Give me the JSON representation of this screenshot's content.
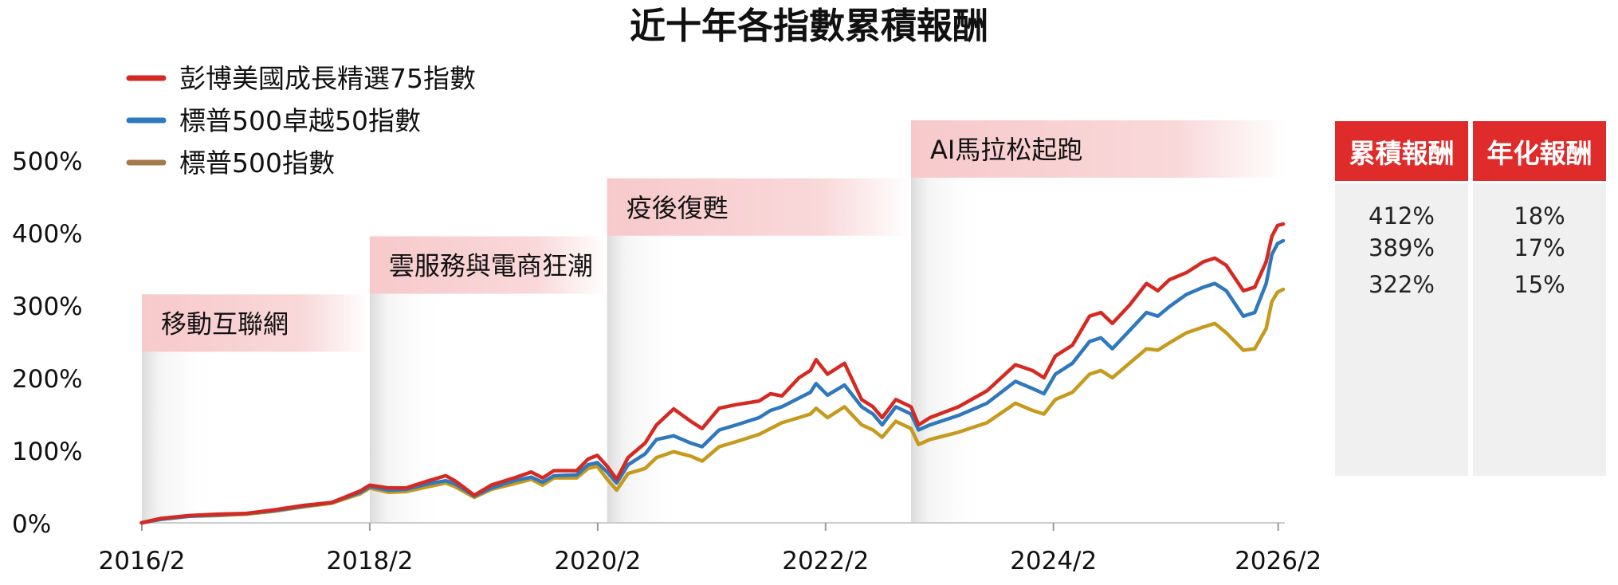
{
  "chart_data": {
    "type": "line",
    "title": "近十年各指數累積報酬",
    "x_ticks": [
      "2016/2",
      "2018/2",
      "2020/2",
      "2022/2",
      "2024/2",
      "2026/2"
    ],
    "y_ticks": [
      "0%",
      "100%",
      "200%",
      "300%",
      "400%",
      "500%"
    ],
    "ylim": [
      0,
      500
    ],
    "xlim": [
      2016.08,
      2026.17
    ],
    "grid": false,
    "legend_position": "top-left",
    "phases": [
      {
        "label": "移動互聯網",
        "start": 2016.0833,
        "end": 2018.0833,
        "band_top": 315
      },
      {
        "label": "雲服務與電商狂潮",
        "start": 2018.0833,
        "end": 2020.1667,
        "band_top": 395
      },
      {
        "label": "疫後復甦",
        "start": 2020.1667,
        "end": 2022.8333,
        "band_top": 475
      },
      {
        "label": "AI馬拉松起跑",
        "start": 2022.8333,
        "end": 2026.1,
        "band_top": 555
      }
    ],
    "series": [
      {
        "name": "彭博美國成長精選75指數",
        "color": "#d42a22",
        "points": [
          [
            2016.08,
            0
          ],
          [
            2016.25,
            6
          ],
          [
            2016.5,
            10
          ],
          [
            2016.75,
            12
          ],
          [
            2017.0,
            13
          ],
          [
            2017.25,
            18
          ],
          [
            2017.5,
            24
          ],
          [
            2017.75,
            28
          ],
          [
            2018.0,
            44
          ],
          [
            2018.0833,
            52
          ],
          [
            2018.25,
            48
          ],
          [
            2018.4,
            48
          ],
          [
            2018.6,
            58
          ],
          [
            2018.75,
            65
          ],
          [
            2018.83,
            58
          ],
          [
            2018.9,
            50
          ],
          [
            2019.0,
            38
          ],
          [
            2019.15,
            52
          ],
          [
            2019.35,
            62
          ],
          [
            2019.5,
            70
          ],
          [
            2019.6,
            62
          ],
          [
            2019.7,
            72
          ],
          [
            2019.9,
            72
          ],
          [
            2020.0,
            88
          ],
          [
            2020.08,
            93
          ],
          [
            2020.1667,
            78
          ],
          [
            2020.25,
            60
          ],
          [
            2020.35,
            90
          ],
          [
            2020.5,
            110
          ],
          [
            2020.6,
            135
          ],
          [
            2020.75,
            157
          ],
          [
            2020.9,
            140
          ],
          [
            2021.0,
            130
          ],
          [
            2021.15,
            158
          ],
          [
            2021.3,
            163
          ],
          [
            2021.5,
            168
          ],
          [
            2021.6,
            178
          ],
          [
            2021.7,
            175
          ],
          [
            2021.85,
            200
          ],
          [
            2021.95,
            210
          ],
          [
            2022.0,
            225
          ],
          [
            2022.1,
            205
          ],
          [
            2022.25,
            220
          ],
          [
            2022.4,
            170
          ],
          [
            2022.5,
            160
          ],
          [
            2022.58,
            145
          ],
          [
            2022.7,
            170
          ],
          [
            2022.8333,
            160
          ],
          [
            2022.9,
            135
          ],
          [
            2023.0,
            145
          ],
          [
            2023.25,
            160
          ],
          [
            2023.5,
            182
          ],
          [
            2023.75,
            218
          ],
          [
            2023.9,
            210
          ],
          [
            2024.0,
            200
          ],
          [
            2024.1,
            230
          ],
          [
            2024.25,
            245
          ],
          [
            2024.4,
            285
          ],
          [
            2024.5,
            290
          ],
          [
            2024.6,
            275
          ],
          [
            2024.75,
            300
          ],
          [
            2024.9,
            330
          ],
          [
            2025.0,
            320
          ],
          [
            2025.1,
            335
          ],
          [
            2025.25,
            345
          ],
          [
            2025.4,
            360
          ],
          [
            2025.5,
            365
          ],
          [
            2025.6,
            355
          ],
          [
            2025.75,
            320
          ],
          [
            2025.85,
            325
          ],
          [
            2025.95,
            360
          ],
          [
            2026.0,
            395
          ],
          [
            2026.05,
            410
          ],
          [
            2026.1,
            412
          ]
        ]
      },
      {
        "name": "標普500卓越50指數",
        "color": "#2f78bd",
        "points": [
          [
            2016.08,
            0
          ],
          [
            2016.25,
            5
          ],
          [
            2016.5,
            9
          ],
          [
            2016.75,
            11
          ],
          [
            2017.0,
            13
          ],
          [
            2017.25,
            17
          ],
          [
            2017.5,
            23
          ],
          [
            2017.75,
            28
          ],
          [
            2018.0,
            42
          ],
          [
            2018.0833,
            50
          ],
          [
            2018.25,
            45
          ],
          [
            2018.4,
            46
          ],
          [
            2018.6,
            54
          ],
          [
            2018.75,
            58
          ],
          [
            2018.83,
            54
          ],
          [
            2018.9,
            47
          ],
          [
            2019.0,
            37
          ],
          [
            2019.15,
            48
          ],
          [
            2019.35,
            58
          ],
          [
            2019.5,
            63
          ],
          [
            2019.6,
            56
          ],
          [
            2019.7,
            65
          ],
          [
            2019.9,
            66
          ],
          [
            2020.0,
            80
          ],
          [
            2020.08,
            83
          ],
          [
            2020.1667,
            70
          ],
          [
            2020.25,
            55
          ],
          [
            2020.35,
            80
          ],
          [
            2020.5,
            95
          ],
          [
            2020.6,
            115
          ],
          [
            2020.75,
            120
          ],
          [
            2020.9,
            110
          ],
          [
            2021.0,
            105
          ],
          [
            2021.15,
            128
          ],
          [
            2021.3,
            135
          ],
          [
            2021.5,
            145
          ],
          [
            2021.6,
            155
          ],
          [
            2021.7,
            160
          ],
          [
            2021.85,
            172
          ],
          [
            2021.95,
            180
          ],
          [
            2022.0,
            192
          ],
          [
            2022.1,
            176
          ],
          [
            2022.25,
            190
          ],
          [
            2022.4,
            160
          ],
          [
            2022.5,
            150
          ],
          [
            2022.58,
            135
          ],
          [
            2022.7,
            160
          ],
          [
            2022.8333,
            150
          ],
          [
            2022.9,
            128
          ],
          [
            2023.0,
            135
          ],
          [
            2023.25,
            148
          ],
          [
            2023.5,
            165
          ],
          [
            2023.75,
            195
          ],
          [
            2023.9,
            185
          ],
          [
            2024.0,
            178
          ],
          [
            2024.1,
            205
          ],
          [
            2024.25,
            220
          ],
          [
            2024.4,
            250
          ],
          [
            2024.5,
            255
          ],
          [
            2024.6,
            240
          ],
          [
            2024.75,
            265
          ],
          [
            2024.9,
            290
          ],
          [
            2025.0,
            285
          ],
          [
            2025.1,
            298
          ],
          [
            2025.25,
            315
          ],
          [
            2025.4,
            325
          ],
          [
            2025.5,
            330
          ],
          [
            2025.6,
            320
          ],
          [
            2025.75,
            285
          ],
          [
            2025.85,
            290
          ],
          [
            2025.95,
            330
          ],
          [
            2026.0,
            370
          ],
          [
            2026.05,
            385
          ],
          [
            2026.1,
            389
          ]
        ]
      },
      {
        "name": "標普500指數",
        "color": "#c69a1d",
        "points": [
          [
            2016.08,
            0
          ],
          [
            2016.25,
            5
          ],
          [
            2016.5,
            9
          ],
          [
            2016.75,
            10
          ],
          [
            2017.0,
            12
          ],
          [
            2017.25,
            16
          ],
          [
            2017.5,
            22
          ],
          [
            2017.75,
            27
          ],
          [
            2018.0,
            40
          ],
          [
            2018.0833,
            48
          ],
          [
            2018.25,
            42
          ],
          [
            2018.4,
            43
          ],
          [
            2018.6,
            50
          ],
          [
            2018.75,
            55
          ],
          [
            2018.83,
            50
          ],
          [
            2018.9,
            44
          ],
          [
            2019.0,
            35
          ],
          [
            2019.15,
            46
          ],
          [
            2019.35,
            54
          ],
          [
            2019.5,
            60
          ],
          [
            2019.6,
            52
          ],
          [
            2019.7,
            62
          ],
          [
            2019.9,
            62
          ],
          [
            2020.0,
            75
          ],
          [
            2020.08,
            78
          ],
          [
            2020.1667,
            60
          ],
          [
            2020.25,
            45
          ],
          [
            2020.35,
            68
          ],
          [
            2020.5,
            75
          ],
          [
            2020.6,
            90
          ],
          [
            2020.75,
            98
          ],
          [
            2020.9,
            92
          ],
          [
            2021.0,
            85
          ],
          [
            2021.15,
            105
          ],
          [
            2021.3,
            112
          ],
          [
            2021.5,
            122
          ],
          [
            2021.6,
            130
          ],
          [
            2021.7,
            138
          ],
          [
            2021.85,
            145
          ],
          [
            2021.95,
            150
          ],
          [
            2022.0,
            158
          ],
          [
            2022.1,
            145
          ],
          [
            2022.25,
            160
          ],
          [
            2022.4,
            135
          ],
          [
            2022.5,
            128
          ],
          [
            2022.58,
            118
          ],
          [
            2022.7,
            140
          ],
          [
            2022.8333,
            130
          ],
          [
            2022.9,
            108
          ],
          [
            2023.0,
            115
          ],
          [
            2023.25,
            125
          ],
          [
            2023.5,
            138
          ],
          [
            2023.75,
            165
          ],
          [
            2023.9,
            155
          ],
          [
            2024.0,
            150
          ],
          [
            2024.1,
            170
          ],
          [
            2024.25,
            180
          ],
          [
            2024.4,
            205
          ],
          [
            2024.5,
            210
          ],
          [
            2024.6,
            200
          ],
          [
            2024.75,
            220
          ],
          [
            2024.9,
            240
          ],
          [
            2025.0,
            238
          ],
          [
            2025.1,
            248
          ],
          [
            2025.25,
            262
          ],
          [
            2025.4,
            270
          ],
          [
            2025.5,
            275
          ],
          [
            2025.6,
            262
          ],
          [
            2025.75,
            238
          ],
          [
            2025.85,
            240
          ],
          [
            2025.95,
            268
          ],
          [
            2026.0,
            305
          ],
          [
            2026.05,
            318
          ],
          [
            2026.1,
            322
          ]
        ]
      }
    ],
    "summary_table": {
      "headers": [
        "累積報酬",
        "年化報酬"
      ],
      "rows": [
        {
          "cumulative": "412%",
          "annualized": "18%"
        },
        {
          "cumulative": "389%",
          "annualized": "17%"
        },
        {
          "cumulative": "322%",
          "annualized": "15%"
        }
      ]
    }
  }
}
